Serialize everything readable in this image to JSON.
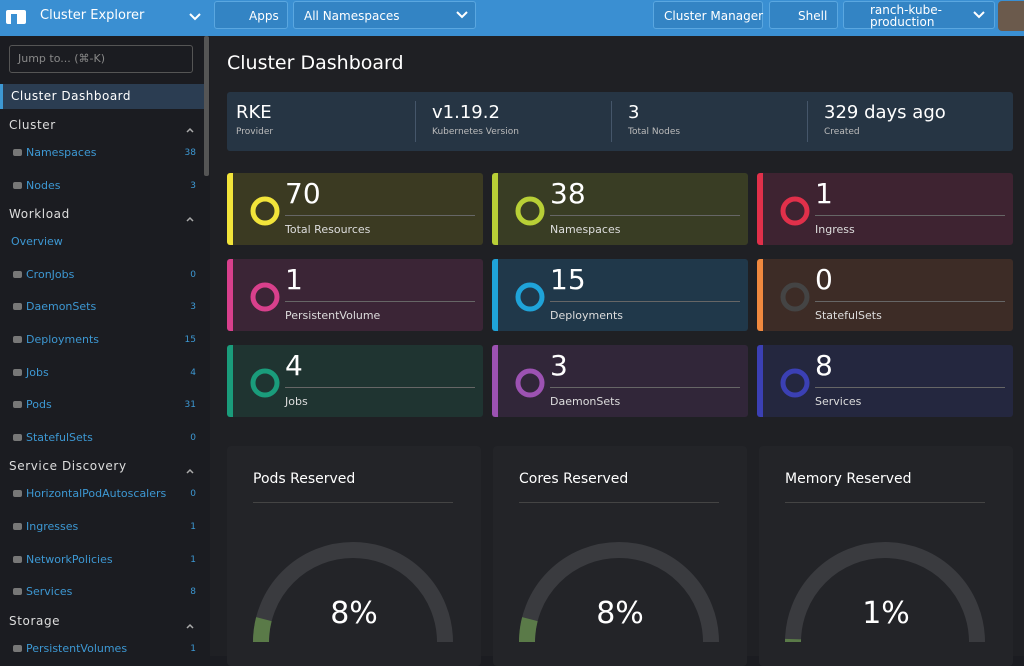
{
  "header": {
    "product": "Cluster Explorer",
    "apps": "Apps",
    "namespace": "All Namespaces",
    "cluster_manager": "Cluster Manager",
    "shell": "Shell",
    "cluster": "ranch-kube-production"
  },
  "sidebar": {
    "search": "Jump to... (⌘-K)",
    "active": "Cluster Dashboard",
    "groups": [
      {
        "title": "Cluster",
        "items": [
          {
            "label": "Namespaces",
            "count": "38"
          },
          {
            "label": "Nodes",
            "count": "3"
          }
        ]
      },
      {
        "title": "Workload",
        "items": [
          {
            "label": "Overview"
          },
          {
            "label": "CronJobs",
            "count": "0"
          },
          {
            "label": "DaemonSets",
            "count": "3"
          },
          {
            "label": "Deployments",
            "count": "15"
          },
          {
            "label": "Jobs",
            "count": "4"
          },
          {
            "label": "Pods",
            "count": "31"
          },
          {
            "label": "StatefulSets",
            "count": "0"
          }
        ]
      },
      {
        "title": "Service Discovery",
        "items": [
          {
            "label": "HorizontalPodAutoscalers",
            "count": "0"
          },
          {
            "label": "Ingresses",
            "count": "1"
          },
          {
            "label": "NetworkPolicies",
            "count": "1"
          },
          {
            "label": "Services",
            "count": "8"
          }
        ]
      },
      {
        "title": "Storage",
        "items": [
          {
            "label": "PersistentVolumes",
            "count": "1"
          }
        ]
      }
    ]
  },
  "main": {
    "title": "Cluster Dashboard",
    "summary": [
      {
        "value": "RKE",
        "label": "Provider"
      },
      {
        "value": "v1.19.2",
        "label": "Kubernetes Version"
      },
      {
        "value": "3",
        "label": "Total Nodes"
      },
      {
        "value": "329 days ago",
        "label": "Created"
      }
    ],
    "cards": [
      {
        "count": "70",
        "label": "Total Resources"
      },
      {
        "count": "38",
        "label": "Namespaces"
      },
      {
        "count": "1",
        "label": "Ingress"
      },
      {
        "count": "1",
        "label": "PersistentVolume"
      },
      {
        "count": "15",
        "label": "Deployments"
      },
      {
        "count": "0",
        "label": "StatefulSets"
      },
      {
        "count": "4",
        "label": "Jobs"
      },
      {
        "count": "3",
        "label": "DaemonSets"
      },
      {
        "count": "8",
        "label": "Services"
      }
    ],
    "gauges": [
      {
        "title": "Pods Reserved",
        "value": "8%"
      },
      {
        "title": "Cores Reserved",
        "value": "8%"
      },
      {
        "title": "Memory Reserved",
        "value": "1%"
      }
    ]
  }
}
